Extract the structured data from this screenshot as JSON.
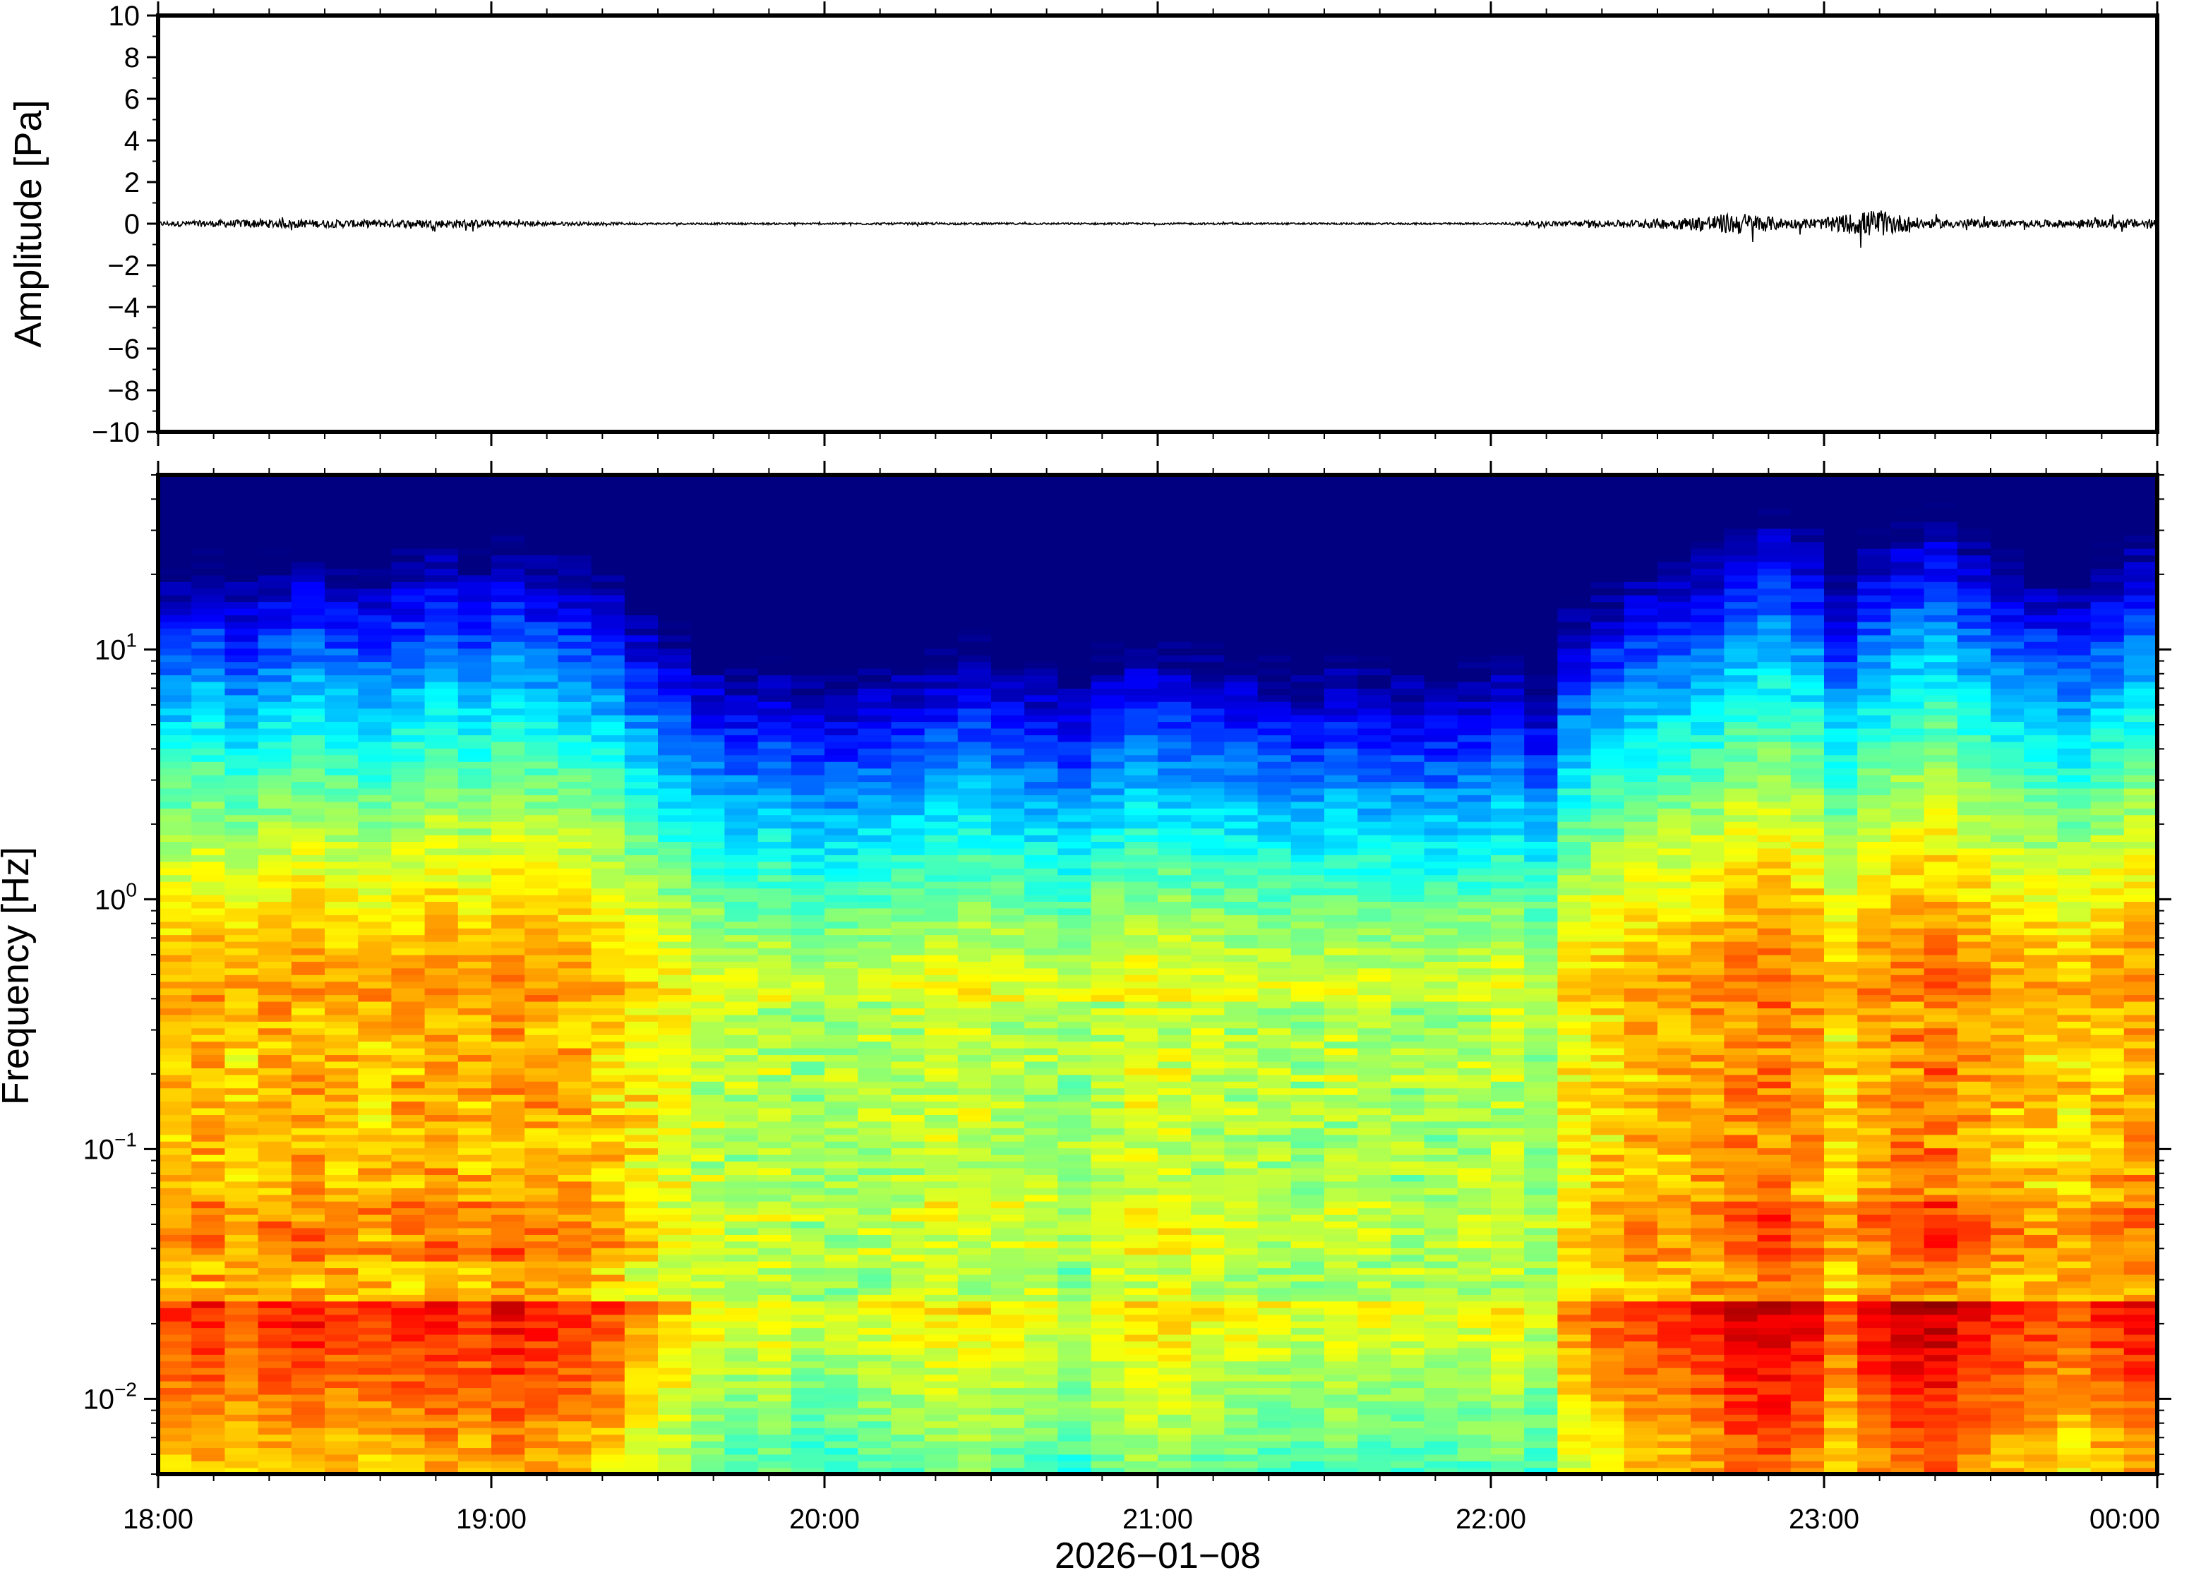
{
  "chart_data": [
    {
      "type": "line",
      "panel": "waveform",
      "ylabel": "Amplitude [Pa]",
      "ylim": [
        -10,
        10
      ],
      "yticks": [
        -10,
        -8,
        -6,
        -4,
        -2,
        0,
        2,
        4,
        6,
        8,
        10
      ],
      "ytick_labels": [
        "−10",
        "−8",
        "−6",
        "−4",
        "−2",
        "0",
        "2",
        "4",
        "6",
        "8",
        "10"
      ],
      "x_range_hours": [
        18,
        24
      ],
      "grid": false,
      "series": [
        {
          "color": "#000000",
          "envelope_t_hours": [
            18.0,
            18.3,
            18.6,
            18.9,
            19.2,
            19.5,
            20.0,
            20.3,
            20.6,
            21.0,
            21.5,
            22.0,
            22.2,
            22.4,
            22.6,
            22.75,
            22.9,
            23.0,
            23.15,
            23.3,
            23.6,
            23.9,
            24.0
          ],
          "envelope_amplitude_pa": [
            0.25,
            0.45,
            0.4,
            0.45,
            0.2,
            0.1,
            0.1,
            0.12,
            0.1,
            0.1,
            0.1,
            0.1,
            0.3,
            0.35,
            0.7,
            1.2,
            0.5,
            0.6,
            1.5,
            0.5,
            0.35,
            0.5,
            0.5
          ]
        }
      ]
    },
    {
      "type": "heatmap",
      "panel": "spectrogram",
      "ylabel": "Frequency [Hz]",
      "yscale": "log",
      "ylim_hz": [
        0.005,
        50
      ],
      "yticks_hz": [
        0.01,
        0.1,
        1,
        10
      ],
      "ytick_labels": [
        {
          "base": "10",
          "exp": "−2"
        },
        {
          "base": "10",
          "exp": "−1"
        },
        {
          "base": "10",
          "exp": "0"
        },
        {
          "base": "10",
          "exp": "1"
        }
      ],
      "colormap": "jet",
      "x_range_hours": [
        18,
        24
      ],
      "time_bins": 60,
      "bin_hours": 0.1,
      "energy_profile": [
        0.75,
        0.8,
        0.72,
        0.78,
        0.82,
        0.77,
        0.75,
        0.8,
        0.84,
        0.78,
        0.85,
        0.8,
        0.78,
        0.72,
        0.6,
        0.5,
        0.4,
        0.35,
        0.38,
        0.3,
        0.3,
        0.35,
        0.38,
        0.42,
        0.45,
        0.4,
        0.35,
        0.3,
        0.4,
        0.46,
        0.45,
        0.4,
        0.38,
        0.36,
        0.32,
        0.38,
        0.35,
        0.34,
        0.32,
        0.35,
        0.4,
        0.3,
        0.6,
        0.68,
        0.75,
        0.78,
        0.82,
        0.92,
        0.95,
        0.88,
        0.7,
        0.85,
        0.92,
        0.95,
        0.86,
        0.78,
        0.75,
        0.7,
        0.78,
        0.85
      ]
    }
  ],
  "xaxis": {
    "tick_labels": [
      "18:00",
      "19:00",
      "20:00",
      "21:00",
      "22:00",
      "23:00",
      "00:00"
    ],
    "date_label": "2026−01−08"
  }
}
